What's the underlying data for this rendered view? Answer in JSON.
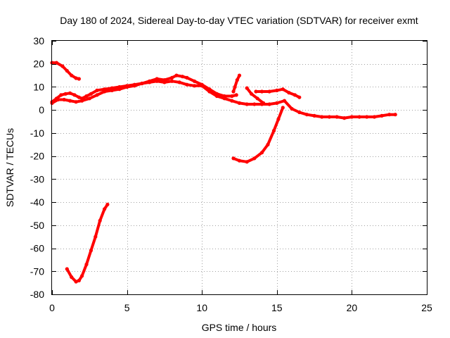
{
  "chart_data": {
    "type": "scatter",
    "title": "Day 180 of 2024, Sidereal Day-to-day VTEC variation (SDTVAR) for receiver exmt",
    "xlabel": "GPS time / hours",
    "ylabel": "SDTVAR / TECUs",
    "xlim": [
      0,
      25
    ],
    "ylim": [
      -80,
      30
    ],
    "xticks": [
      0,
      5,
      10,
      15,
      20,
      25
    ],
    "yticks": [
      -80,
      -70,
      -60,
      -50,
      -40,
      -30,
      -20,
      -10,
      0,
      10,
      20,
      30
    ],
    "grid": true,
    "color": "#ff0000",
    "series": [
      {
        "name": "track-1",
        "x": [
          0.0,
          0.3,
          0.7,
          1.0,
          1.3,
          1.6,
          1.8
        ],
        "y": [
          20.5,
          20.5,
          19,
          17,
          15,
          13.8,
          13.5
        ]
      },
      {
        "name": "track-2",
        "x": [
          0.0,
          0.3,
          0.6,
          0.9,
          1.2,
          1.5,
          1.8,
          2.0,
          2.3,
          2.6,
          3.0,
          3.5,
          4.0,
          4.5,
          5.0,
          5.5,
          6.0,
          6.5,
          7.0,
          7.5,
          8.0,
          8.3,
          8.7,
          9.0,
          9.5,
          10.0,
          10.5,
          11.0,
          11.5,
          12.0,
          12.3
        ],
        "y": [
          3.5,
          5,
          6.5,
          7,
          7.3,
          6.5,
          5.5,
          5,
          6,
          7,
          8.5,
          9,
          9.5,
          10,
          10.5,
          11,
          11.5,
          12.5,
          13.5,
          13,
          14,
          15,
          14.5,
          14,
          12.5,
          11,
          9,
          7,
          6,
          6,
          6.5
        ]
      },
      {
        "name": "track-3",
        "x": [
          0.0,
          0.4,
          0.8,
          1.2,
          1.6,
          2.0,
          2.5,
          3.0,
          3.5,
          4.0,
          4.5,
          5.0,
          5.5,
          6.0,
          6.5,
          7.0,
          7.5,
          8.0,
          8.5,
          9.0,
          9.5,
          10.0,
          10.5,
          11.0,
          11.5,
          12.0,
          12.5,
          13.0,
          13.5,
          14.0,
          14.5,
          15.0,
          15.5,
          16.0,
          16.5,
          17.0,
          17.5,
          18.0,
          18.5,
          19.0,
          19.5,
          20.0,
          20.5,
          21.0,
          21.5,
          22.0,
          22.5,
          22.9
        ],
        "y": [
          3,
          4.5,
          4.5,
          4,
          3.5,
          4,
          5,
          6.5,
          8,
          8.5,
          9,
          10,
          10.5,
          11.5,
          12,
          12.5,
          12,
          12.5,
          12,
          11,
          10.5,
          10.5,
          8,
          6,
          5,
          4,
          3,
          2.5,
          2.5,
          2.5,
          2.5,
          3,
          4,
          0.5,
          -1,
          -2,
          -2.5,
          -3,
          -3,
          -3,
          -3.5,
          -3,
          -3,
          -3,
          -3,
          -2.5,
          -2,
          -2
        ]
      },
      {
        "name": "track-4",
        "x": [
          12.1,
          12.2,
          12.35,
          12.5
        ],
        "y": [
          8,
          10,
          13,
          15
        ]
      },
      {
        "name": "track-5",
        "x": [
          12.1,
          12.5,
          13.0,
          13.5,
          14.0,
          14.4,
          14.8,
          15.1,
          15.4
        ],
        "y": [
          -21,
          -22,
          -22.5,
          -21,
          -18.5,
          -15,
          -9,
          -4,
          1
        ]
      },
      {
        "name": "track-6",
        "x": [
          13.0,
          13.3,
          13.7,
          14.1
        ],
        "y": [
          9.5,
          7,
          5,
          3
        ]
      },
      {
        "name": "track-7",
        "x": [
          13.6,
          14.0,
          14.5,
          15.0,
          15.4,
          15.8,
          16.2,
          16.5
        ],
        "y": [
          8,
          8,
          8,
          8.5,
          9,
          7.5,
          6.5,
          5.5
        ]
      },
      {
        "name": "track-8",
        "x": [
          1.0,
          1.3,
          1.6,
          1.8,
          2.0,
          2.3,
          2.6,
          2.9,
          3.2,
          3.5,
          3.7
        ],
        "y": [
          -69,
          -72.5,
          -74.5,
          -74,
          -72,
          -67,
          -61,
          -55,
          -48,
          -43,
          -41
        ]
      }
    ]
  }
}
